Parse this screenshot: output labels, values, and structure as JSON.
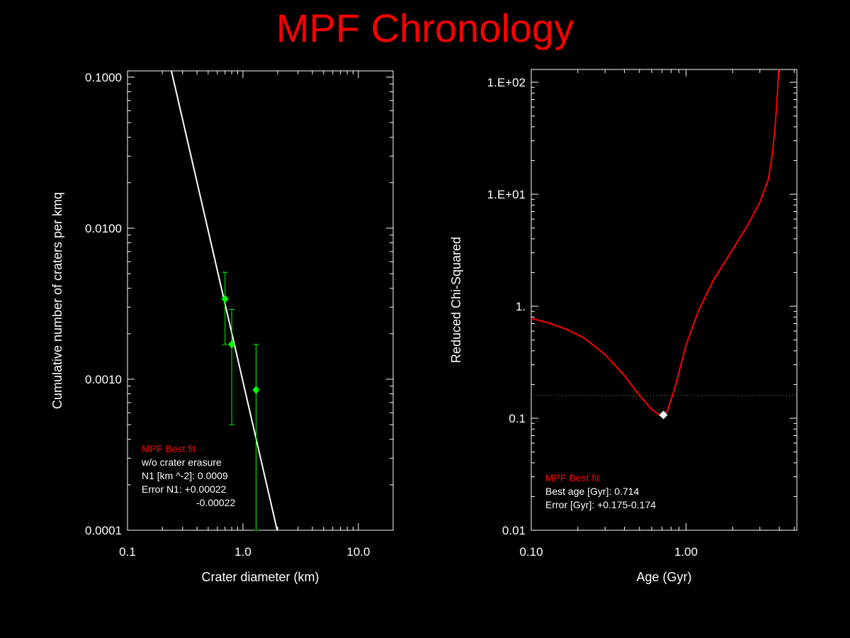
{
  "title": "MPF Chronology",
  "colors": {
    "background": "#000000",
    "title": "#ff0000",
    "axes": "#ffffff",
    "fit_line": "#ffffff",
    "data_points": "#00ff00",
    "chi_curve": "#ff0000",
    "legend_heading": "#ff0000",
    "best_marker": "#ffffff",
    "threshold_line": "#7f8f5a"
  },
  "chart_data": [
    {
      "type": "scatter",
      "xlabel": "Crater diameter (km)",
      "ylabel": "Cumulative number of craters per kmq",
      "x_scale": "log",
      "y_scale": "log",
      "xlim": [
        0.1,
        20
      ],
      "ylim": [
        0.0001,
        0.11
      ],
      "x_tick_labels": [
        {
          "value": 0.1,
          "label": "0.1"
        },
        {
          "value": 1,
          "label": "1.0"
        },
        {
          "value": 10,
          "label": "10.0"
        }
      ],
      "y_tick_labels": [
        {
          "value": 0.0001,
          "label": "0.0001"
        },
        {
          "value": 0.001,
          "label": "0.0010"
        },
        {
          "value": 0.01,
          "label": "0.0100"
        },
        {
          "value": 0.1,
          "label": "0.1000"
        }
      ],
      "series": [
        {
          "kind": "line",
          "points": [
            {
              "x": 0.24,
              "y": 0.11
            },
            {
              "x": 1.98,
              "y": 0.0001
            }
          ]
        },
        {
          "kind": "points",
          "points": [
            {
              "x": 0.7,
              "y": 0.0034,
              "y_err_low": 0.0017,
              "y_err_high": 0.0051
            },
            {
              "x": 0.8,
              "y": 0.0017,
              "y_err_low": 0.0005,
              "y_err_high": 0.0029
            },
            {
              "x": 1.3,
              "y": 0.00085,
              "y_err_low": 0.0001,
              "y_err_high": 0.0017
            }
          ]
        }
      ],
      "legend": {
        "placement": "bottom-left",
        "lines": [
          {
            "text": "MPF Best fit",
            "role": "heading"
          },
          {
            "text": "w/o crater erasure",
            "role": "text"
          },
          {
            "text": "N1 [km ^-2]: 0.0009",
            "role": "text"
          },
          {
            "text": "Error N1: +0.00022",
            "role": "text"
          },
          {
            "text": "-0.00022",
            "role": "indent"
          }
        ]
      }
    },
    {
      "type": "line",
      "xlabel": "Age (Gyr)",
      "ylabel": "Reduced Chi-Squared",
      "x_scale": "log",
      "y_scale": "log",
      "xlim": [
        0.1,
        5.2
      ],
      "ylim": [
        0.01,
        130
      ],
      "x_tick_labels": [
        {
          "value": 0.1,
          "label": "0.10"
        },
        {
          "value": 1,
          "label": "1.00"
        }
      ],
      "y_tick_labels": [
        {
          "value": 0.01,
          "label": "0.01"
        },
        {
          "value": 0.1,
          "label": "0.1"
        },
        {
          "value": 1,
          "label": "1."
        },
        {
          "value": 10,
          "label": "1.E+01"
        },
        {
          "value": 100,
          "label": "1.E+02"
        }
      ],
      "series": [
        {
          "kind": "curve",
          "x": [
            0.1,
            0.13,
            0.17,
            0.22,
            0.3,
            0.4,
            0.5,
            0.6,
            0.68,
            0.714,
            0.76,
            0.85,
            1.0,
            1.2,
            1.5,
            2.0,
            2.5,
            3.0,
            3.4,
            3.6,
            3.75,
            3.85,
            3.92,
            3.97
          ],
          "y": [
            0.78,
            0.71,
            0.62,
            0.52,
            0.37,
            0.24,
            0.16,
            0.12,
            0.106,
            0.107,
            0.117,
            0.19,
            0.45,
            0.9,
            1.7,
            3.2,
            5.3,
            8.5,
            13.5,
            22,
            38,
            62,
            95,
            130
          ]
        }
      ],
      "best_fit_marker": {
        "x": 0.714,
        "y": 0.107
      },
      "threshold_line_y": 0.16,
      "legend": {
        "placement": "bottom-left",
        "lines": [
          {
            "text": "MPF Best fit",
            "role": "heading"
          },
          {
            "text": "Best age [Gyr]: 0.714",
            "role": "text"
          },
          {
            "text": "Error [Gyr]: +0.175-0.174",
            "role": "text"
          }
        ]
      }
    }
  ]
}
